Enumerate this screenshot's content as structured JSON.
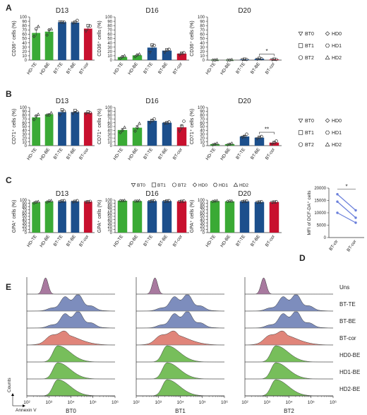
{
  "colors": {
    "hd": "#3aaa35",
    "bt": "#1c4f8c",
    "cor": "#c8102e",
    "d_line": "#6a7fdb"
  },
  "panel_letters": [
    "A",
    "B",
    "C",
    "D",
    "E"
  ],
  "legend_ab": [
    {
      "symbol": "triangle-down",
      "label": "BT0"
    },
    {
      "symbol": "diamond",
      "label": "HD0"
    },
    {
      "symbol": "square",
      "label": "BT1"
    },
    {
      "symbol": "hexagon",
      "label": "HD1"
    },
    {
      "symbol": "circle",
      "label": "BT2"
    },
    {
      "symbol": "triangle-up",
      "label": "HD2"
    }
  ],
  "legend_c": [
    {
      "symbol": "triangle-down",
      "label": "BT0"
    },
    {
      "symbol": "square",
      "label": "BT1"
    },
    {
      "symbol": "circle",
      "label": "BT2"
    },
    {
      "symbol": "diamond",
      "label": "HD0"
    },
    {
      "symbol": "hexagon",
      "label": "HD1"
    },
    {
      "symbol": "triangle-up",
      "label": "HD2"
    }
  ],
  "chart_data": [
    {
      "id": "A-D13",
      "type": "bar",
      "title": "D13",
      "ylabel": "CD36⁺ cells (%)",
      "ylim": [
        0,
        100
      ],
      "yticks": [
        0,
        10,
        20,
        30,
        40,
        50,
        60,
        70,
        80,
        90,
        100
      ],
      "categories": [
        "HD-TE",
        "HD-BE",
        "BT-TE",
        "BT-BE",
        "BT-cor"
      ],
      "values": [
        63,
        66,
        88,
        87,
        73
      ],
      "points": [
        [
          55,
          73,
          78
        ],
        [
          58,
          70,
          72
        ],
        [
          89,
          88,
          88
        ],
        [
          86,
          88,
          92
        ],
        [
          67,
          80,
          79
        ]
      ]
    },
    {
      "id": "A-D16",
      "type": "bar",
      "title": "D16",
      "ylabel": "CD36⁺ cells (%)",
      "ylim": [
        0,
        100
      ],
      "yticks": [
        0,
        10,
        20,
        30,
        40,
        50,
        60,
        70,
        80,
        90,
        100
      ],
      "categories": [
        "HD-TE",
        "HD-BE",
        "BT-TE",
        "BT-BE",
        "BT-cor"
      ],
      "values": [
        7,
        11,
        29,
        22,
        15
      ],
      "points": [
        [
          4,
          8,
          10
        ],
        [
          8,
          12,
          14
        ],
        [
          18,
          35,
          34
        ],
        [
          18,
          24,
          25
        ],
        [
          12,
          16,
          17
        ]
      ]
    },
    {
      "id": "A-D20",
      "type": "bar",
      "title": "D20",
      "ylabel": "CD36⁺ cells (%)",
      "ylim": [
        0,
        100
      ],
      "yticks": [
        0,
        10,
        20,
        30,
        40,
        50,
        60,
        70,
        80,
        90,
        100
      ],
      "categories": [
        "HD-TE",
        "HD-BE",
        "BT-TE",
        "BT-BE",
        "BT-cor"
      ],
      "values": [
        0.5,
        0.5,
        1.5,
        3,
        1.5
      ],
      "points": [
        [
          0,
          0.5,
          1
        ],
        [
          0,
          0.5,
          1
        ],
        [
          1,
          2,
          1.5
        ],
        [
          2,
          4,
          3
        ],
        [
          1,
          2,
          1.5
        ]
      ],
      "significance": [
        {
          "from": 3,
          "to": 4,
          "label": "*"
        }
      ]
    },
    {
      "id": "B-D13",
      "type": "bar",
      "title": "D13",
      "ylabel": "CD71⁺ cells (%)",
      "ylim": [
        0,
        100
      ],
      "yticks": [
        0,
        10,
        20,
        30,
        40,
        50,
        60,
        70,
        80,
        90,
        100
      ],
      "categories": [
        "HD-TE",
        "HD-BE",
        "BT-TE",
        "BT-BE",
        "BT-cor"
      ],
      "values": [
        74,
        82,
        88,
        88,
        86
      ],
      "points": [
        [
          68,
          78,
          82
        ],
        [
          80,
          80,
          86
        ],
        [
          80,
          94,
          90
        ],
        [
          84,
          92,
          88
        ],
        [
          84,
          88,
          86
        ]
      ]
    },
    {
      "id": "B-D16",
      "type": "bar",
      "title": "D16",
      "ylabel": "CD71⁺ cells (%)",
      "ylim": [
        0,
        100
      ],
      "yticks": [
        0,
        10,
        20,
        30,
        40,
        50,
        60,
        70,
        80,
        90,
        100
      ],
      "categories": [
        "HD-TE",
        "HD-BE",
        "BT-TE",
        "BT-BE",
        "BT-cor"
      ],
      "values": [
        41,
        47,
        65,
        60,
        48
      ],
      "points": [
        [
          34,
          40,
          48
        ],
        [
          38,
          48,
          58
        ],
        [
          60,
          66,
          70
        ],
        [
          58,
          60,
          62
        ],
        [
          38,
          50,
          64
        ]
      ]
    },
    {
      "id": "B-D20",
      "type": "bar",
      "title": "D20",
      "ylabel": "CD71⁺ cells (%)",
      "ylim": [
        0,
        100
      ],
      "yticks": [
        0,
        10,
        20,
        30,
        40,
        50,
        60,
        70,
        80,
        90,
        100
      ],
      "categories": [
        "HD-TE",
        "HD-BE",
        "BT-TE",
        "BT-BE",
        "BT-cor"
      ],
      "values": [
        4,
        4,
        24,
        21,
        8
      ],
      "points": [
        [
          2,
          4,
          6
        ],
        [
          2,
          4,
          6
        ],
        [
          22,
          24,
          30
        ],
        [
          18,
          22,
          24
        ],
        [
          4,
          8,
          12
        ]
      ],
      "significance": [
        {
          "from": 3,
          "to": 4,
          "label": "**"
        }
      ]
    },
    {
      "id": "C-D13",
      "type": "bar",
      "title": "D13",
      "ylabel": "GPA⁺ cells (%)",
      "ylim": [
        0,
        100
      ],
      "yticks": [
        0,
        10,
        20,
        30,
        40,
        50,
        60,
        70,
        80,
        90,
        100
      ],
      "categories": [
        "HD-TE",
        "HD-BE",
        "BT-TE",
        "BT-BE",
        "BT-cor"
      ],
      "values": [
        93,
        96,
        96,
        96,
        95
      ],
      "points": [
        [
          91,
          94,
          95
        ],
        [
          94,
          97,
          98
        ],
        [
          95,
          97,
          98
        ],
        [
          94,
          96,
          98
        ],
        [
          94,
          95,
          96
        ]
      ]
    },
    {
      "id": "C-D16",
      "type": "bar",
      "title": "D16",
      "ylabel": "GPA⁺ cells (%)",
      "ylim": [
        0,
        100
      ],
      "yticks": [
        0,
        10,
        20,
        30,
        40,
        50,
        60,
        70,
        80,
        90,
        100
      ],
      "categories": [
        "HD-TE",
        "HD-BE",
        "BT-TE",
        "BT-BE",
        "BT-cor"
      ],
      "values": [
        98,
        97,
        97,
        97,
        96
      ],
      "points": [
        [
          98,
          98,
          99
        ],
        [
          97,
          97,
          98
        ],
        [
          96,
          97,
          98
        ],
        [
          96,
          97,
          98
        ],
        [
          95,
          96,
          97
        ]
      ]
    },
    {
      "id": "C-D20",
      "type": "bar",
      "title": "D20",
      "ylabel": "GPA⁺ cells (%)",
      "ylim": [
        0,
        100
      ],
      "yticks": [
        0,
        10,
        20,
        30,
        40,
        50,
        60,
        70,
        80,
        90,
        100
      ],
      "categories": [
        "HD-TE",
        "HD-BE",
        "BT-TE",
        "BT-BE",
        "BT-cor"
      ],
      "values": [
        97,
        96,
        96,
        94,
        94
      ],
      "points": [
        [
          96,
          97,
          98
        ],
        [
          96,
          97,
          97
        ],
        [
          95,
          96,
          97
        ],
        [
          93,
          94,
          95
        ],
        [
          93,
          94,
          95
        ]
      ]
    },
    {
      "id": "D",
      "type": "line",
      "ylabel": "MFI of DCF-DA⁺ cells",
      "ylim": [
        0,
        20000
      ],
      "yticks": [
        0,
        5000,
        10000,
        15000,
        20000
      ],
      "categories": [
        "BT-ctr",
        "BT-cor"
      ],
      "series": [
        {
          "values": [
            17500,
            11000
          ]
        },
        {
          "values": [
            14500,
            8000
          ]
        },
        {
          "values": [
            10000,
            6000
          ]
        }
      ],
      "significance": [
        {
          "from": 0,
          "to": 1,
          "label": "*"
        }
      ]
    },
    {
      "id": "E",
      "type": "area",
      "xlabel": "Annexin V",
      "ylabel": "Counts",
      "xlim_log10": [
        2,
        6
      ],
      "xtick_labels": [
        "10²",
        "10³",
        "10⁴",
        "10⁵",
        "10⁶"
      ],
      "samples": [
        "BT0",
        "BT1",
        "BT2"
      ],
      "rows": [
        {
          "label": "Uns",
          "fill": "#a8799f",
          "peak_log10": 2.85,
          "width": 0.12,
          "kind": "narrow"
        },
        {
          "label": "BT-TE",
          "fill": "#7d8dbd",
          "peak_log10": 4.1,
          "width": 0.55,
          "kind": "broad"
        },
        {
          "label": "BT-BE",
          "fill": "#7d8dbd",
          "peak_log10": 4.1,
          "width": 0.55,
          "kind": "broad"
        },
        {
          "label": "BT-cor",
          "fill": "#e0857a",
          "peak_log10": 3.5,
          "width": 0.45,
          "kind": "mid"
        },
        {
          "label": "HD0-BE",
          "fill": "#77be5b",
          "peak_log10": 3.4,
          "width": 0.35,
          "kind": "skew"
        },
        {
          "label": "HD1-BE",
          "fill": "#77be5b",
          "peak_log10": 3.4,
          "width": 0.35,
          "kind": "skew"
        },
        {
          "label": "HD2-BE",
          "fill": "#77be5b",
          "peak_log10": 3.4,
          "width": 0.35,
          "kind": "skew"
        }
      ]
    }
  ]
}
